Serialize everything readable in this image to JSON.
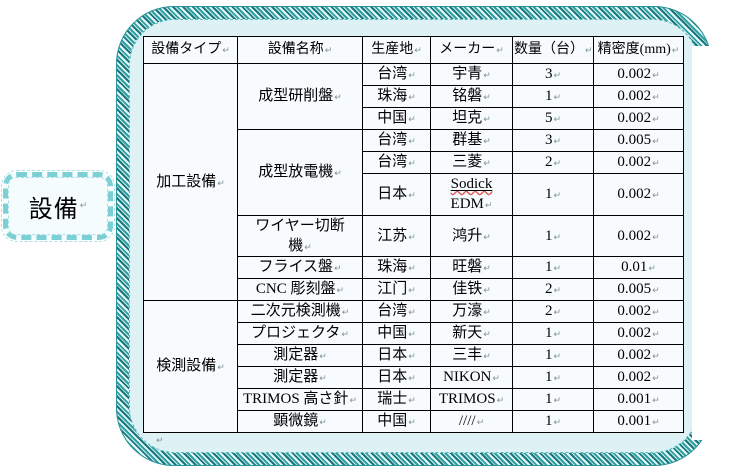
{
  "marks": {
    "cell_end": "↵"
  },
  "label_box": {
    "text": "設備"
  },
  "table": {
    "headers": [
      "設備タイプ",
      "設備名称",
      "生産地",
      "メーカー",
      "数量（台）",
      "精密度(mm)"
    ],
    "sections": [
      {
        "type": "加工設備",
        "groups": [
          {
            "name": "成型研削盤",
            "rows": [
              {
                "origin": "台湾",
                "maker": "宇青",
                "qty": "3",
                "precision": "0.002"
              },
              {
                "origin": "珠海",
                "maker": "铭磐",
                "qty": "1",
                "precision": "0.002"
              },
              {
                "origin": "中国",
                "maker": "坦克",
                "qty": "5",
                "precision": "0.002"
              }
            ]
          },
          {
            "name": "成型放電機",
            "rows": [
              {
                "origin": "台湾",
                "maker": "群基",
                "qty": "3",
                "precision": "0.005"
              },
              {
                "origin": "台湾",
                "maker": "三菱",
                "qty": "2",
                "precision": "0.002"
              },
              {
                "origin": "日本",
                "maker": "Sodick EDM",
                "maker_lines": [
                  "Sodick",
                  "EDM"
                ],
                "maker_decorated": true,
                "qty": "1",
                "precision": "0.002"
              }
            ]
          },
          {
            "name": "ワイヤー切断機",
            "name_lines": [
              "ワイヤー切断",
              "機"
            ],
            "rows": [
              {
                "origin": "江苏",
                "maker": "鸿升",
                "qty": "1",
                "precision": "0.002"
              }
            ]
          },
          {
            "name": "フライス盤",
            "rows": [
              {
                "origin": "珠海",
                "maker": "旺磐",
                "qty": "1",
                "precision": "0.01"
              }
            ]
          },
          {
            "name": "CNC 彫刻盤",
            "rows": [
              {
                "origin": "江门",
                "maker": "佳铁",
                "qty": "2",
                "precision": "0.005"
              }
            ]
          }
        ]
      },
      {
        "type": "検測設備",
        "groups": [
          {
            "name": "二次元検測機",
            "rows": [
              {
                "origin": "台湾",
                "maker": "万濠",
                "qty": "2",
                "precision": "0.002"
              }
            ]
          },
          {
            "name": "プロジェクタ",
            "rows": [
              {
                "origin": "中国",
                "maker": "新天",
                "qty": "1",
                "precision": "0.002"
              }
            ]
          },
          {
            "name": "測定器",
            "rows": [
              {
                "origin": "日本",
                "maker": "三丰",
                "qty": "1",
                "precision": "0.002"
              }
            ]
          },
          {
            "name": "測定器",
            "rows": [
              {
                "origin": "日本",
                "maker": "NIKON",
                "qty": "1",
                "precision": "0.002"
              }
            ]
          },
          {
            "name": "TRIMOS 高さ針",
            "rows": [
              {
                "origin": "瑞士",
                "maker": "TRIMOS",
                "qty": "1",
                "precision": "0.001"
              }
            ]
          },
          {
            "name": "顕微鏡",
            "rows": [
              {
                "origin": "中国",
                "maker": "////",
                "qty": "1",
                "precision": "0.001"
              }
            ]
          }
        ]
      }
    ]
  }
}
